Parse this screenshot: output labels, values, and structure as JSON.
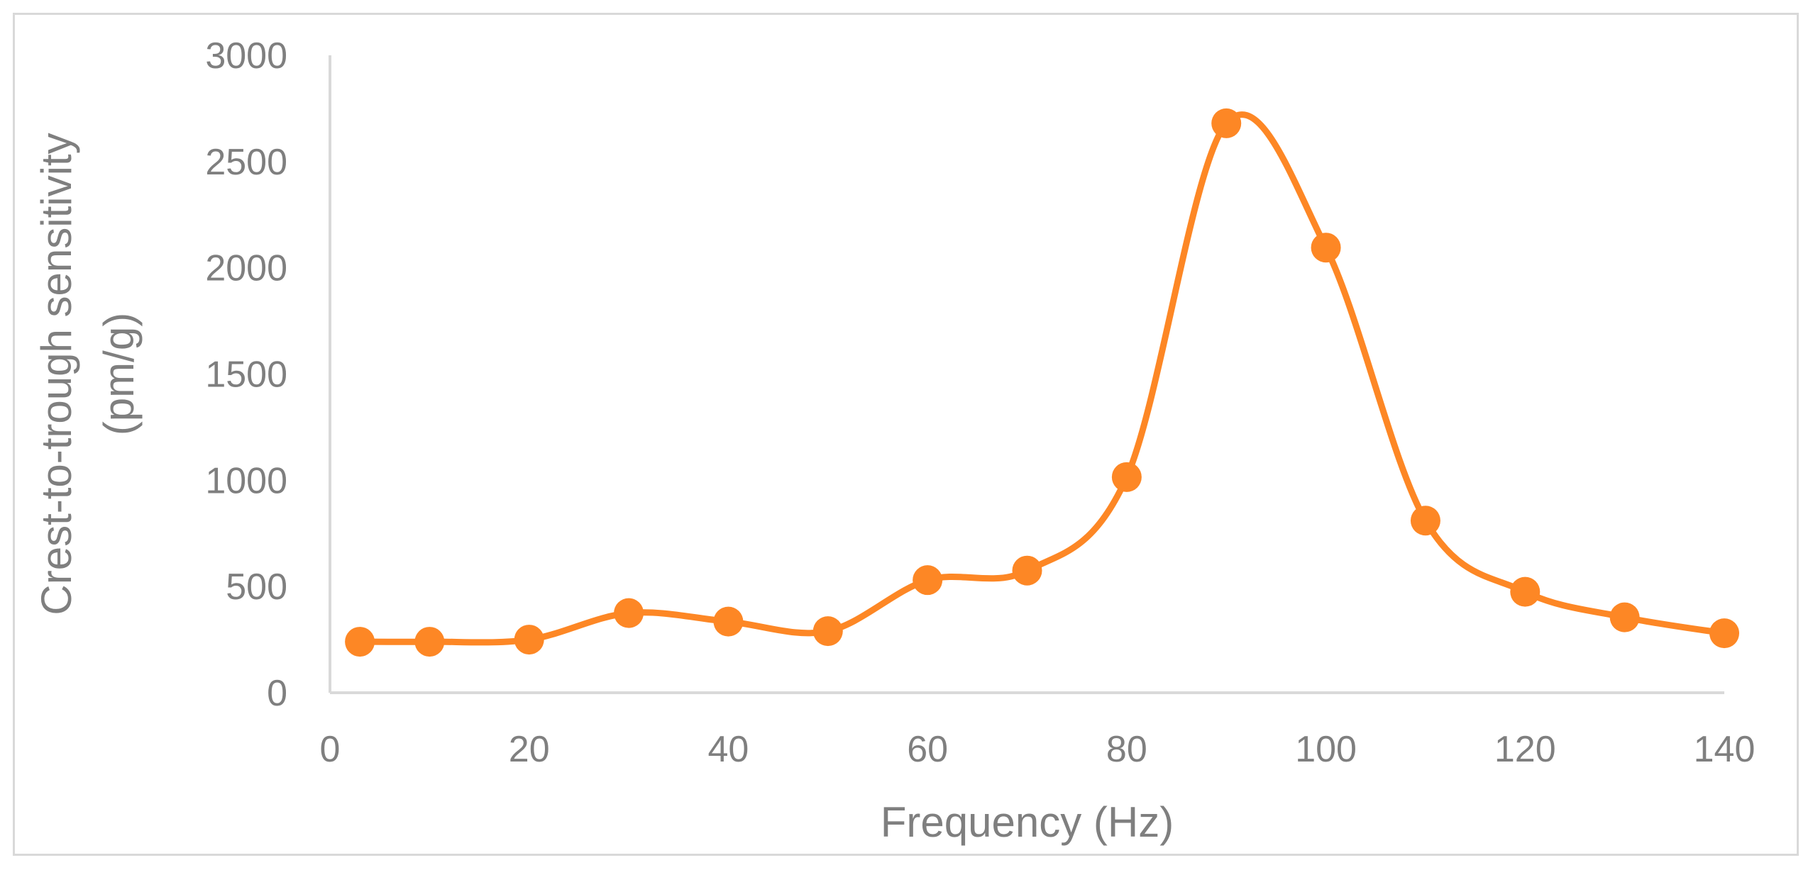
{
  "chart_data": {
    "type": "line",
    "title": "",
    "xlabel": "Frequency (Hz)",
    "ylabel_lines": [
      "Crest-to-trough sensitivity",
      "(pm/g)"
    ],
    "xlim": [
      0,
      140
    ],
    "ylim": [
      0,
      3000
    ],
    "x_ticks": [
      0,
      20,
      40,
      60,
      80,
      100,
      120,
      140
    ],
    "y_ticks": [
      0,
      500,
      1000,
      1500,
      2000,
      2500,
      3000
    ],
    "grid": false,
    "legend": "none",
    "smooth": true,
    "series_color": "#fd8725",
    "axis_color": "#d9d9d9",
    "series": [
      {
        "x": [
          3,
          10,
          20,
          30,
          40,
          50,
          60,
          70,
          80,
          90,
          100,
          110,
          120,
          130,
          140
        ],
        "values": [
          240,
          240,
          250,
          375,
          335,
          290,
          530,
          575,
          1015,
          2680,
          2095,
          810,
          475,
          355,
          280
        ]
      }
    ]
  }
}
